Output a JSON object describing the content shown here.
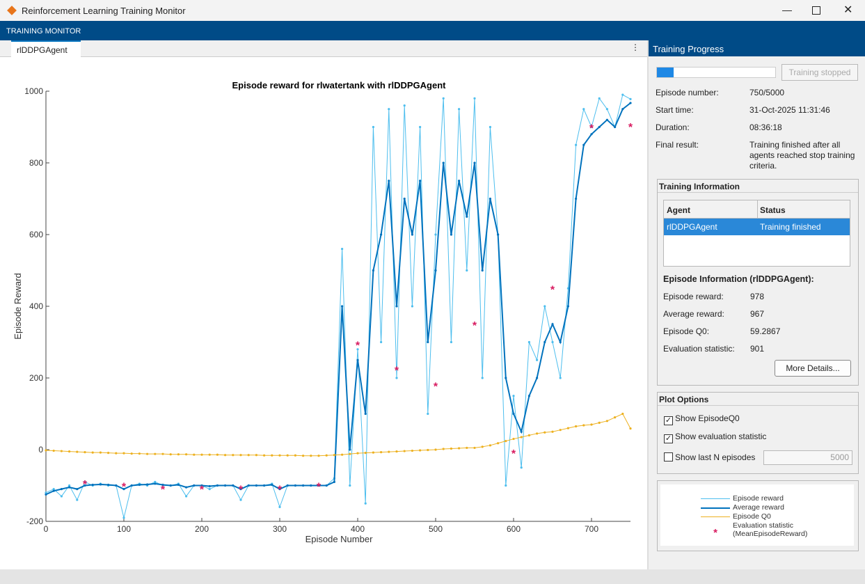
{
  "window": {
    "title": "Reinforcement Learning Training Monitor"
  },
  "header": {
    "title": "TRAINING MONITOR"
  },
  "tab": {
    "label": "rlDDPGAgent"
  },
  "chart_data": {
    "type": "line",
    "title": "Episode reward for rlwatertank with rlDDPGAgent",
    "xlabel": "Episode Number",
    "ylabel": "Episode Reward",
    "xlim": [
      0,
      750
    ],
    "ylim": [
      -200,
      1000
    ],
    "xticks": [
      0,
      100,
      200,
      300,
      400,
      500,
      600,
      700
    ],
    "yticks": [
      -200,
      0,
      200,
      400,
      600,
      800,
      1000
    ],
    "x": [
      0,
      10,
      20,
      30,
      40,
      50,
      60,
      70,
      80,
      90,
      100,
      110,
      120,
      130,
      140,
      150,
      160,
      170,
      180,
      190,
      200,
      210,
      220,
      230,
      240,
      250,
      260,
      270,
      280,
      290,
      300,
      310,
      320,
      330,
      340,
      350,
      360,
      370,
      380,
      390,
      400,
      410,
      420,
      430,
      440,
      450,
      460,
      470,
      480,
      490,
      500,
      510,
      520,
      530,
      540,
      550,
      560,
      570,
      580,
      590,
      600,
      610,
      620,
      630,
      640,
      650,
      660,
      670,
      680,
      690,
      700,
      710,
      720,
      730,
      740,
      750
    ],
    "series": [
      {
        "name": "Episode reward",
        "color": "#4dbeee",
        "values": [
          -120,
          -110,
          -130,
          -100,
          -140,
          -90,
          -100,
          -95,
          -100,
          -100,
          -190,
          -100,
          -95,
          -100,
          -90,
          -100,
          -100,
          -95,
          -130,
          -100,
          -100,
          -110,
          -100,
          -100,
          -100,
          -140,
          -100,
          -100,
          -100,
          -95,
          -160,
          -100,
          -100,
          -100,
          -100,
          -100,
          -100,
          -80,
          560,
          -100,
          280,
          -150,
          900,
          300,
          950,
          200,
          960,
          400,
          900,
          100,
          600,
          980,
          300,
          950,
          500,
          980,
          200,
          900,
          600,
          -100,
          150,
          -50,
          300,
          250,
          400,
          300,
          200,
          450,
          850,
          950,
          900,
          980,
          950,
          900,
          990,
          978
        ]
      },
      {
        "name": "Average reward",
        "color": "#0072bd",
        "values": [
          -125,
          -115,
          -110,
          -105,
          -110,
          -100,
          -98,
          -97,
          -98,
          -100,
          -110,
          -100,
          -98,
          -97,
          -95,
          -98,
          -100,
          -98,
          -105,
          -100,
          -100,
          -102,
          -100,
          -100,
          -100,
          -110,
          -100,
          -100,
          -100,
          -98,
          -110,
          -100,
          -100,
          -100,
          -100,
          -100,
          -100,
          -90,
          400,
          0,
          250,
          100,
          500,
          600,
          750,
          400,
          700,
          600,
          750,
          300,
          500,
          800,
          600,
          750,
          650,
          800,
          500,
          700,
          600,
          200,
          100,
          50,
          150,
          200,
          300,
          350,
          300,
          400,
          700,
          850,
          880,
          900,
          920,
          900,
          950,
          967
        ]
      },
      {
        "name": "Episode Q0",
        "color": "#edb120",
        "values": [
          -2,
          -3,
          -4,
          -5,
          -6,
          -7,
          -8,
          -8,
          -9,
          -10,
          -10,
          -11,
          -11,
          -12,
          -12,
          -12,
          -13,
          -13,
          -13,
          -14,
          -14,
          -14,
          -14,
          -15,
          -15,
          -15,
          -15,
          -15,
          -16,
          -16,
          -16,
          -16,
          -16,
          -17,
          -17,
          -17,
          -16,
          -15,
          -14,
          -12,
          -10,
          -9,
          -8,
          -7,
          -6,
          -5,
          -4,
          -3,
          -2,
          -1,
          0,
          2,
          3,
          4,
          5,
          5,
          8,
          12,
          18,
          24,
          30,
          35,
          40,
          45,
          48,
          50,
          55,
          60,
          65,
          68,
          70,
          75,
          80,
          90,
          100,
          59
        ]
      },
      {
        "name": "Evaluation statistic (MeanEpisodeReward)",
        "color": "#d81b60",
        "x": [
          50,
          100,
          150,
          200,
          250,
          300,
          350,
          400,
          450,
          500,
          550,
          600,
          650,
          700,
          750
        ],
        "values": [
          -95,
          -102,
          -110,
          -110,
          -110,
          -110,
          -102,
          292,
          222,
          178,
          348,
          -10,
          448,
          898,
          901
        ]
      }
    ]
  },
  "panel": {
    "title": "Training Progress",
    "button": "Training stopped",
    "info": [
      [
        "Episode number:",
        "750/5000"
      ],
      [
        "Start time:",
        "31-Oct-2025 11:31:46"
      ],
      [
        "Duration:",
        "08:36:18"
      ],
      [
        "Final result:",
        "Training finished after all agents reached stop training criteria."
      ]
    ],
    "training_information": {
      "title": "Training Information",
      "columns": [
        "Agent",
        "Status"
      ],
      "rows": [
        [
          "rlDDPGAgent",
          "Training finished"
        ]
      ]
    },
    "episode_information": {
      "title": "Episode Information (rlDDPGAgent):",
      "rows": [
        [
          "Episode reward:",
          978
        ],
        [
          "Average reward:",
          967
        ],
        [
          "Episode Q0:",
          59.2867
        ],
        [
          "Evaluation statistic:",
          901
        ]
      ]
    },
    "details_button": "More Details...",
    "plot_options": {
      "title": "Plot Options",
      "options": [
        {
          "label": "Show EpisodeQ0",
          "checked": true
        },
        {
          "label": "Show evaluation statistic",
          "checked": true
        },
        {
          "label": "Show last N episodes",
          "checked": false
        }
      ],
      "n_episodes": 5000
    }
  }
}
